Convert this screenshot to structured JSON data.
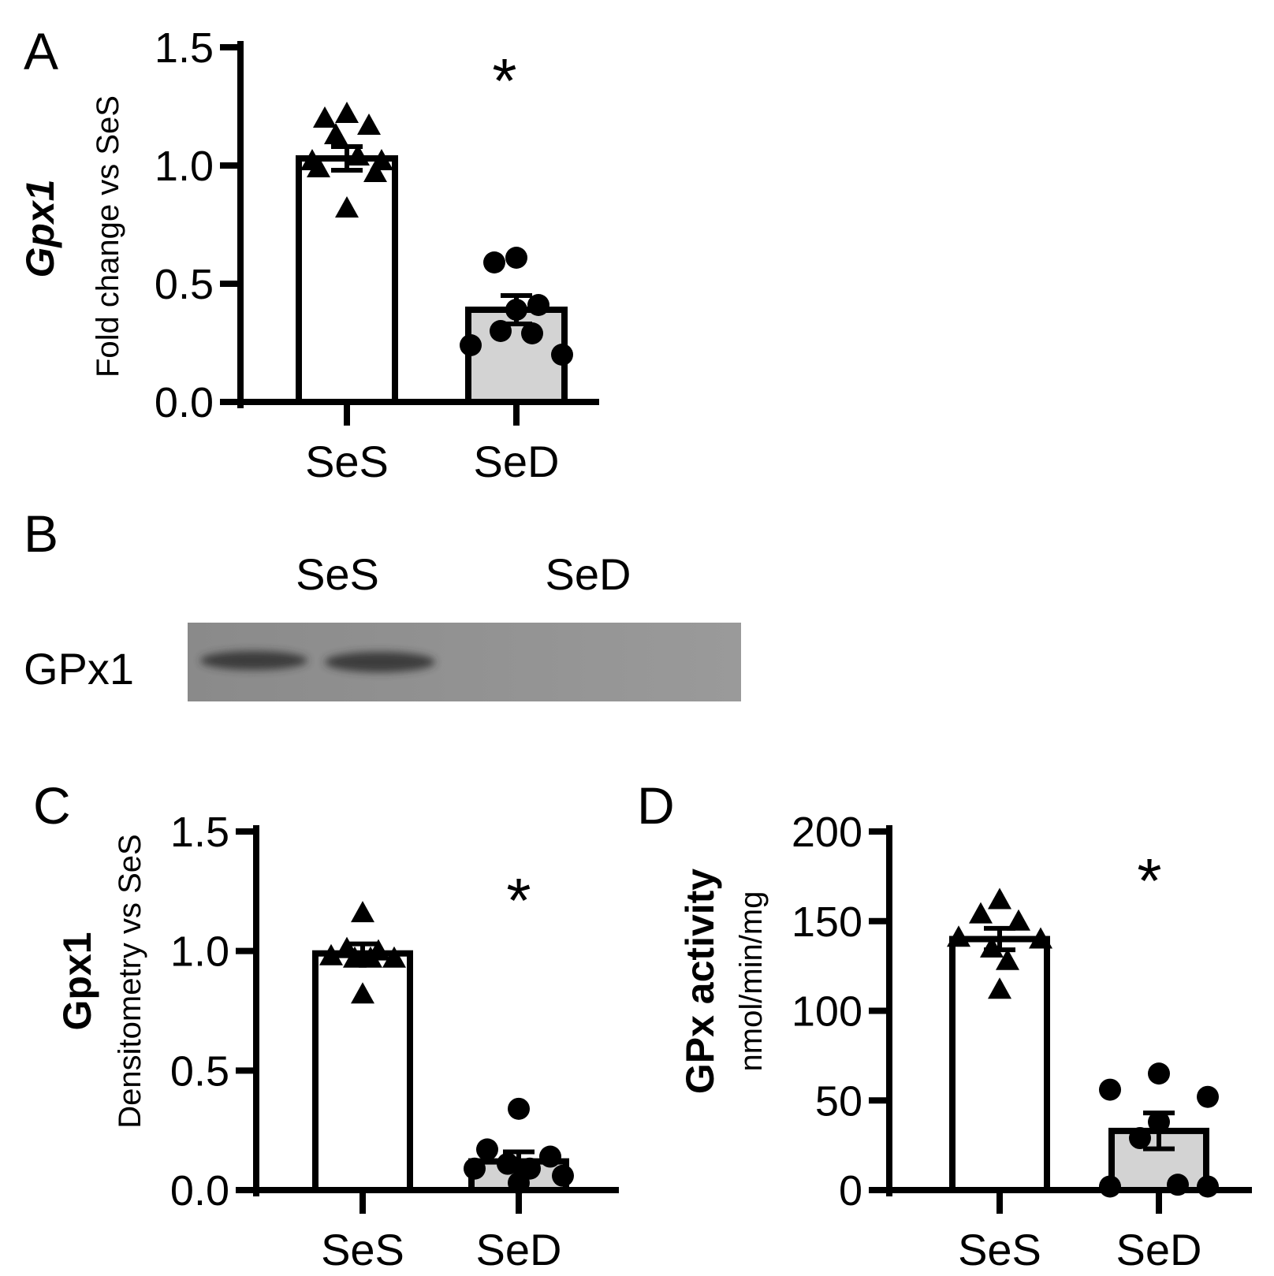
{
  "panels": {
    "A": {
      "letter": "A"
    },
    "B": {
      "letter": "B",
      "lane_labels": [
        "SeS",
        "SeD"
      ],
      "band_label": "GPx1"
    },
    "C": {
      "letter": "C"
    },
    "D": {
      "letter": "D"
    }
  },
  "chart_data": [
    {
      "id": "A",
      "type": "bar",
      "ylabel_main": "Gpx1",
      "ylabel_sub": "Fold change vs SeS",
      "ylim": [
        0,
        1.5
      ],
      "yticks": [
        "0.0",
        "0.5",
        "1.0",
        "1.5"
      ],
      "yticks_values": [
        0,
        0.5,
        1.0,
        1.5
      ],
      "categories": [
        "SeS",
        "SeD"
      ],
      "values": [
        1.03,
        0.39
      ],
      "sem": [
        0.05,
        0.06
      ],
      "points": [
        [
          1.22,
          1.2,
          1.17,
          1.13,
          1.04,
          1.02,
          1.02,
          0.99,
          0.97,
          0.82
        ],
        [
          0.61,
          0.59,
          0.41,
          0.39,
          0.3,
          0.29,
          0.24,
          0.2
        ]
      ],
      "markers": [
        "triangle",
        "circle"
      ],
      "fills": [
        "#ffffff",
        "#d3d3d3"
      ],
      "annotation": "*",
      "annotation_category": "SeD"
    },
    {
      "id": "C",
      "type": "bar",
      "ylabel_main": "Gpx1",
      "ylabel_sub": "Densitometry vs SeS",
      "ylim": [
        0,
        1.5
      ],
      "yticks": [
        "0.0",
        "0.5",
        "1.0",
        "1.5"
      ],
      "yticks_values": [
        0,
        0.5,
        1.0,
        1.5
      ],
      "categories": [
        "SeS",
        "SeD"
      ],
      "values": [
        0.99,
        0.12
      ],
      "sem": [
        0.04,
        0.04
      ],
      "points": [
        [
          1.16,
          1.01,
          1.0,
          0.98,
          0.97,
          0.97,
          0.97,
          0.82
        ],
        [
          0.34,
          0.17,
          0.14,
          0.11,
          0.09,
          0.09,
          0.06,
          0.03
        ]
      ],
      "markers": [
        "triangle",
        "circle"
      ],
      "fills": [
        "#ffffff",
        "#d3d3d3"
      ],
      "annotation": "*",
      "annotation_category": "SeD"
    },
    {
      "id": "D",
      "type": "bar",
      "ylabel_main": "GPx activity",
      "ylabel_sub": "nmol/min/mg",
      "ylim": [
        0,
        200
      ],
      "yticks": [
        "0",
        "50",
        "100",
        "150",
        "200"
      ],
      "yticks_values": [
        0,
        50,
        100,
        150,
        200
      ],
      "categories": [
        "SeS",
        "SeD"
      ],
      "values": [
        140,
        33
      ],
      "sem": [
        6,
        10
      ],
      "points": [
        [
          162,
          154,
          150,
          141,
          140,
          135,
          128,
          112
        ],
        [
          65,
          56,
          52,
          38,
          29,
          3,
          2,
          2
        ]
      ],
      "markers": [
        "triangle",
        "circle"
      ],
      "fills": [
        "#ffffff",
        "#d3d3d3"
      ],
      "annotation": "*",
      "annotation_category": "SeD"
    }
  ],
  "colors": {
    "ink": "#000000",
    "sed_fill": "#d3d3d3",
    "blot_bg": "#8f8f8f",
    "band": "#3a3a3a"
  }
}
